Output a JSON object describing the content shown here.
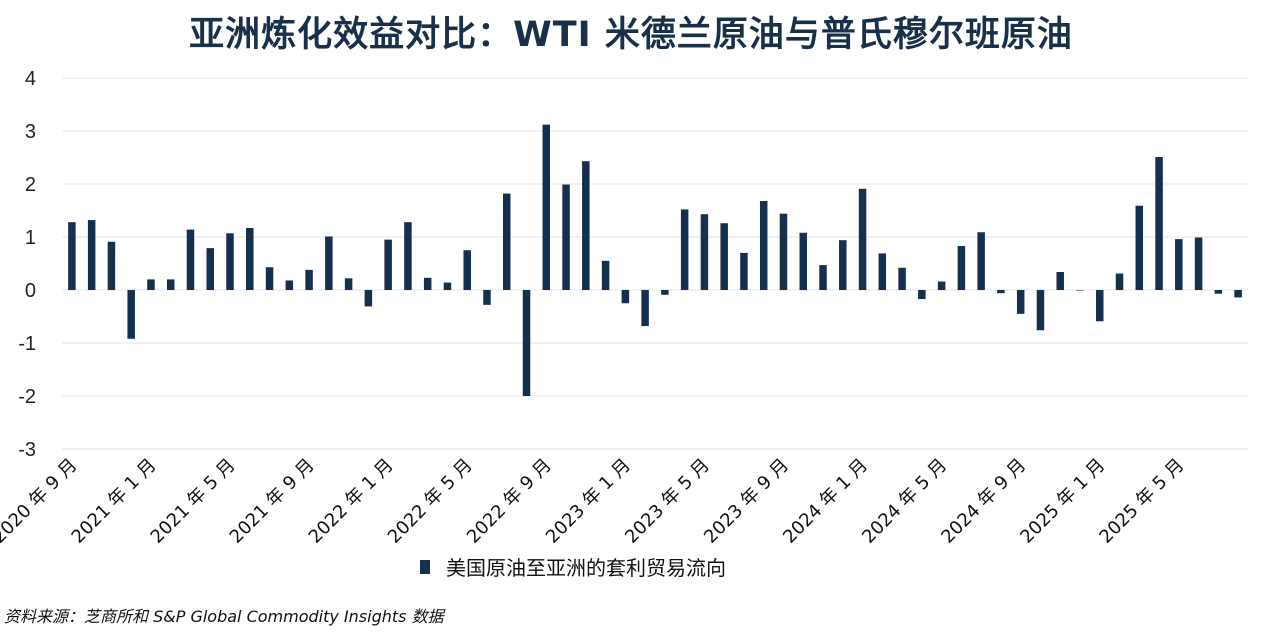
{
  "title": "亚洲炼化效益对比：WTI 米德兰原油与普氏穆尔班原油",
  "source": "资料来源：芝商所和 S&P Global Commodity Insights 数据",
  "colors": {
    "bar": "#15304f",
    "grid": "#e4e4e4",
    "title": "#1a2f4a"
  },
  "chart_data": {
    "type": "bar",
    "ylim": [
      -3,
      4
    ],
    "yticks": [
      4,
      3,
      2,
      1,
      0,
      -1,
      -2,
      -3
    ],
    "grid": true,
    "legend_position": "bottom-center",
    "series": [
      {
        "name": "美国原油至亚洲的套利贸易流向",
        "values": [
          1.28,
          1.32,
          0.91,
          -0.92,
          0.2,
          0.2,
          1.14,
          0.79,
          1.07,
          1.17,
          0.43,
          0.18,
          0.38,
          1.01,
          0.22,
          -0.31,
          0.95,
          1.28,
          0.23,
          0.14,
          0.75,
          -0.28,
          1.82,
          -2.0,
          3.12,
          1.99,
          2.43,
          0.55,
          -0.25,
          -0.68,
          -0.09,
          1.52,
          1.43,
          1.26,
          0.7,
          1.68,
          1.44,
          1.08,
          0.47,
          0.94,
          1.91,
          0.69,
          0.42,
          -0.17,
          0.16,
          0.83,
          1.09,
          -0.06,
          -0.45,
          -0.76,
          0.34,
          -0.01,
          -0.59,
          0.31,
          1.59,
          2.51,
          0.96,
          0.99,
          -0.07,
          -0.14
        ]
      }
    ],
    "x_tick_labels": [
      "2020 年 9 月",
      "2021 年 1 月",
      "2021 年 5 月",
      "2021 年 9 月",
      "2022 年 1 月",
      "2022 年 5 月",
      "2022 年 9 月",
      "2023 年 1 月",
      "2023 年 5 月",
      "2023 年 9 月",
      "2024 年 1 月",
      "2024 年 5 月",
      "2024 年 9 月",
      "2025 年 1 月",
      "2025 年 5 月"
    ]
  }
}
